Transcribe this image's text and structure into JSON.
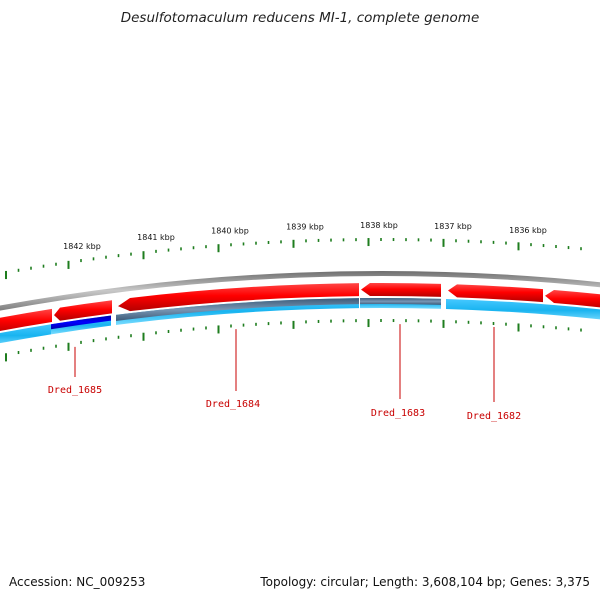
{
  "title": "Desulfotomaculum reducens MI-1, complete genome",
  "footer": {
    "accession": "Accession: NC_009253",
    "summary": "Topology: circular; Length: 3,608,104 bp; Genes: 3,375"
  },
  "kbp_labels": [
    "1842 kbp",
    "1841 kbp",
    "1840 kbp",
    "1839 kbp",
    "1838 kbp",
    "1837 kbp",
    "1836 kbp"
  ],
  "gene_labels": [
    "Dred_1685",
    "Dred_1684",
    "Dred_1683",
    "Dred_1682"
  ],
  "colors": {
    "forward_feature": "#e60000",
    "reverse_feature": "#e60000",
    "cds_light": "#19b4f0",
    "cds_dark": "#5a7896",
    "highlight": "#0000d2",
    "backbone": "#8c8c8c",
    "ticks": "#1e7d1e",
    "gene_label": "#c80000"
  }
}
